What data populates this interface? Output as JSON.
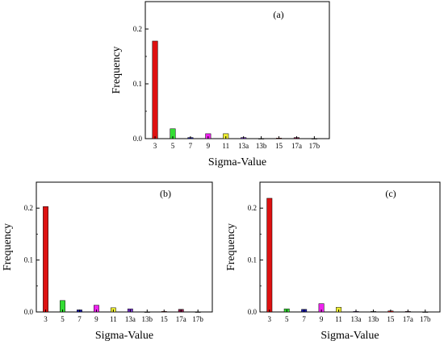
{
  "chart_data": [
    {
      "type": "bar",
      "panel_label": "(a)",
      "categories": [
        "3",
        "5",
        "7",
        "9",
        "11",
        "13a",
        "13b",
        "15",
        "17a",
        "17b"
      ],
      "values": [
        0.178,
        0.018,
        0.002,
        0.009,
        0.009,
        0.002,
        0.0,
        0.001,
        0.002,
        0.0
      ],
      "colors": [
        "#dd1111",
        "#33dd33",
        "#1a1aaa",
        "#ee22ee",
        "#eeee33",
        "#7733cc",
        "#888888",
        "#dd1111",
        "#8b1a4a",
        "#888888"
      ],
      "xlabel": "Sigma-Value",
      "ylabel": "Frequency",
      "ylim": [
        0,
        0.25
      ],
      "yticks": [
        "0.0",
        "0.1",
        "0.2"
      ],
      "grid": false
    },
    {
      "type": "bar",
      "panel_label": "(b)",
      "categories": [
        "3",
        "5",
        "7",
        "9",
        "11",
        "13a",
        "13b",
        "15",
        "17a",
        "17b"
      ],
      "values": [
        0.203,
        0.022,
        0.004,
        0.013,
        0.008,
        0.006,
        0.0,
        0.001,
        0.005,
        0.0
      ],
      "colors": [
        "#dd1111",
        "#33dd33",
        "#1a1aaa",
        "#ee22ee",
        "#eeee33",
        "#7733cc",
        "#888888",
        "#dd1111",
        "#8b1a4a",
        "#888888"
      ],
      "xlabel": "Sigma-Value",
      "ylabel": "Frequency",
      "ylim": [
        0,
        0.25
      ],
      "yticks": [
        "0.0",
        "0.1",
        "0.2"
      ],
      "grid": false
    },
    {
      "type": "bar",
      "panel_label": "(c)",
      "categories": [
        "3",
        "5",
        "7",
        "9",
        "11",
        "13a",
        "13b",
        "15",
        "17a",
        "17b"
      ],
      "values": [
        0.219,
        0.006,
        0.005,
        0.016,
        0.009,
        0.001,
        0.001,
        0.002,
        0.001,
        0.0
      ],
      "colors": [
        "#dd1111",
        "#33dd33",
        "#1a1aaa",
        "#ee22ee",
        "#eeee33",
        "#7733cc",
        "#888888",
        "#dd1111",
        "#8b1a4a",
        "#888888"
      ],
      "xlabel": "Sigma-Value",
      "ylabel": "Frequency",
      "ylim": [
        0,
        0.25
      ],
      "yticks": [
        "0.0",
        "0.1",
        "0.2"
      ],
      "grid": false
    }
  ]
}
